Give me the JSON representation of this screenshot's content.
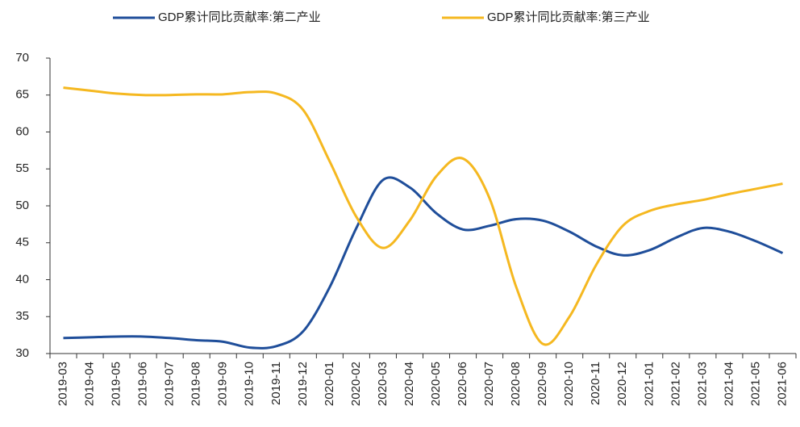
{
  "chart_data": {
    "type": "line",
    "categories": [
      "2019-03",
      "2019-04",
      "2019-05",
      "2019-06",
      "2019-07",
      "2019-08",
      "2019-09",
      "2019-10",
      "2019-11",
      "2019-12",
      "2020-01",
      "2020-02",
      "2020-03",
      "2020-04",
      "2020-05",
      "2020-06",
      "2020-07",
      "2020-08",
      "2020-09",
      "2020-10",
      "2020-11",
      "2020-12",
      "2021-01",
      "2021-02",
      "2021-03",
      "2021-04",
      "2021-05",
      "2021-06"
    ],
    "series": [
      {
        "name": "GDP累计同比贡献率:第二产业",
        "color": "#1f4e9a",
        "values": [
          32.1,
          32.2,
          32.3,
          32.3,
          32.1,
          31.8,
          31.6,
          30.8,
          31.0,
          33.0,
          39.0,
          47.0,
          53.5,
          52.5,
          49.0,
          46.8,
          47.3,
          48.2,
          48.0,
          46.5,
          44.5,
          43.3,
          44.0,
          45.7,
          47.0,
          46.5,
          45.2,
          43.6
        ]
      },
      {
        "name": "GDP累计同比贡献率:第三产业",
        "color": "#f5b820",
        "values": [
          66.0,
          65.6,
          65.2,
          65.0,
          65.0,
          65.1,
          65.1,
          65.4,
          65.2,
          63.0,
          56.0,
          48.5,
          44.3,
          48.0,
          54.0,
          56.4,
          51.0,
          39.0,
          31.3,
          35.0,
          42.0,
          47.3,
          49.3,
          50.2,
          50.8,
          51.6,
          52.3,
          53.0
        ]
      }
    ],
    "ylim": [
      30,
      70
    ],
    "yticks": [
      30,
      35,
      40,
      45,
      50,
      55,
      60,
      65,
      70
    ],
    "grid": false,
    "legend": "top"
  }
}
